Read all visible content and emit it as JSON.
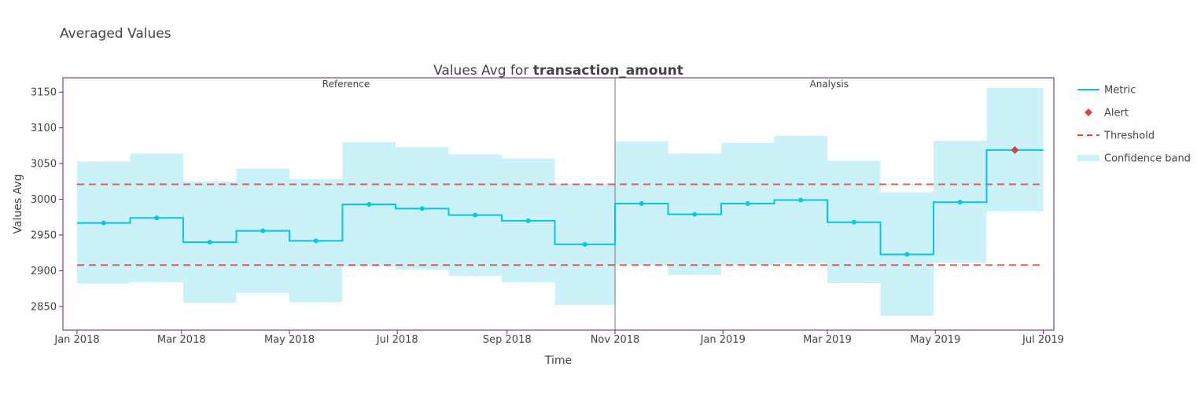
{
  "page": {
    "title": "Averaged Values"
  },
  "chart_data": {
    "type": "line",
    "title_prefix": "Values Avg for ",
    "title_bold": "transaction_amount",
    "xlabel": "Time",
    "ylabel": "Values Avg",
    "x_range": [
      "2017-12-24",
      "2019-07-07"
    ],
    "ylim": [
      2817,
      3170
    ],
    "yticks": [
      2850,
      2900,
      2950,
      3000,
      3050,
      3100,
      3150
    ],
    "xticks": [
      {
        "date": "2018-01-01",
        "label": "Jan 2018"
      },
      {
        "date": "2018-03-01",
        "label": "Mar 2018"
      },
      {
        "date": "2018-05-01",
        "label": "May 2018"
      },
      {
        "date": "2018-07-01",
        "label": "Jul 2018"
      },
      {
        "date": "2018-09-01",
        "label": "Sep 2018"
      },
      {
        "date": "2018-11-01",
        "label": "Nov 2018"
      },
      {
        "date": "2019-01-01",
        "label": "Jan 2019"
      },
      {
        "date": "2019-03-01",
        "label": "Mar 2019"
      },
      {
        "date": "2019-05-01",
        "label": "May 2019"
      },
      {
        "date": "2019-07-01",
        "label": "Jul 2019"
      }
    ],
    "divider_date": "2018-11-01",
    "periods": [
      {
        "label": "Reference",
        "start": "2018-01-01",
        "end": "2018-11-01"
      },
      {
        "label": "Analysis",
        "start": "2018-11-01",
        "end": "2019-07-01"
      }
    ],
    "chunks": [
      {
        "start": "2018-01-01",
        "end": "2018-01-31",
        "value": 2967,
        "lower": 2882,
        "upper": 3053,
        "alert": false
      },
      {
        "start": "2018-01-31",
        "end": "2018-03-02",
        "value": 2974,
        "lower": 2884,
        "upper": 3064,
        "alert": false
      },
      {
        "start": "2018-03-02",
        "end": "2018-04-01",
        "value": 2940,
        "lower": 2855,
        "upper": 3025,
        "alert": false
      },
      {
        "start": "2018-04-01",
        "end": "2018-05-01",
        "value": 2956,
        "lower": 2869,
        "upper": 3043,
        "alert": false
      },
      {
        "start": "2018-05-01",
        "end": "2018-05-31",
        "value": 2942,
        "lower": 2856,
        "upper": 3028,
        "alert": false
      },
      {
        "start": "2018-05-31",
        "end": "2018-06-30",
        "value": 2993,
        "lower": 2906,
        "upper": 3080,
        "alert": false
      },
      {
        "start": "2018-06-30",
        "end": "2018-07-30",
        "value": 2987,
        "lower": 2902,
        "upper": 3073,
        "alert": false
      },
      {
        "start": "2018-07-30",
        "end": "2018-08-29",
        "value": 2978,
        "lower": 2893,
        "upper": 3063,
        "alert": false
      },
      {
        "start": "2018-08-29",
        "end": "2018-09-28",
        "value": 2970,
        "lower": 2884,
        "upper": 3057,
        "alert": false
      },
      {
        "start": "2018-09-28",
        "end": "2018-11-01",
        "value": 2937,
        "lower": 2852,
        "upper": 3022,
        "alert": false
      },
      {
        "start": "2018-11-01",
        "end": "2018-12-01",
        "value": 2994,
        "lower": 2908,
        "upper": 3081,
        "alert": false
      },
      {
        "start": "2018-12-01",
        "end": "2018-12-31",
        "value": 2979,
        "lower": 2894,
        "upper": 3064,
        "alert": false
      },
      {
        "start": "2018-12-31",
        "end": "2019-01-30",
        "value": 2994,
        "lower": 2908,
        "upper": 3079,
        "alert": false
      },
      {
        "start": "2019-01-30",
        "end": "2019-03-01",
        "value": 2999,
        "lower": 2910,
        "upper": 3089,
        "alert": false
      },
      {
        "start": "2019-03-01",
        "end": "2019-03-31",
        "value": 2968,
        "lower": 2883,
        "upper": 3054,
        "alert": false
      },
      {
        "start": "2019-03-31",
        "end": "2019-04-30",
        "value": 2923,
        "lower": 2837,
        "upper": 3010,
        "alert": false
      },
      {
        "start": "2019-04-30",
        "end": "2019-05-30",
        "value": 2996,
        "lower": 2911,
        "upper": 3082,
        "alert": false
      },
      {
        "start": "2019-05-30",
        "end": "2019-07-01",
        "value": 3069,
        "lower": 2983,
        "upper": 3156,
        "alert": true
      }
    ],
    "thresholds": {
      "upper": 3021,
      "lower": 2908
    },
    "legend_position": "right",
    "legend": [
      {
        "label": "Metric",
        "kind": "line"
      },
      {
        "label": "Alert",
        "kind": "diamond"
      },
      {
        "label": "Threshold",
        "kind": "dash"
      },
      {
        "label": "Confidence band",
        "kind": "band"
      }
    ],
    "colors": {
      "metric": "#00c8e5",
      "band": "#ccf2f9",
      "alert": "#dd4444",
      "alert_on_line": "#c0504d",
      "threshold": "#dd4444",
      "frame": "#6b1f6b",
      "divider": "#777777",
      "text": "#444444"
    }
  }
}
